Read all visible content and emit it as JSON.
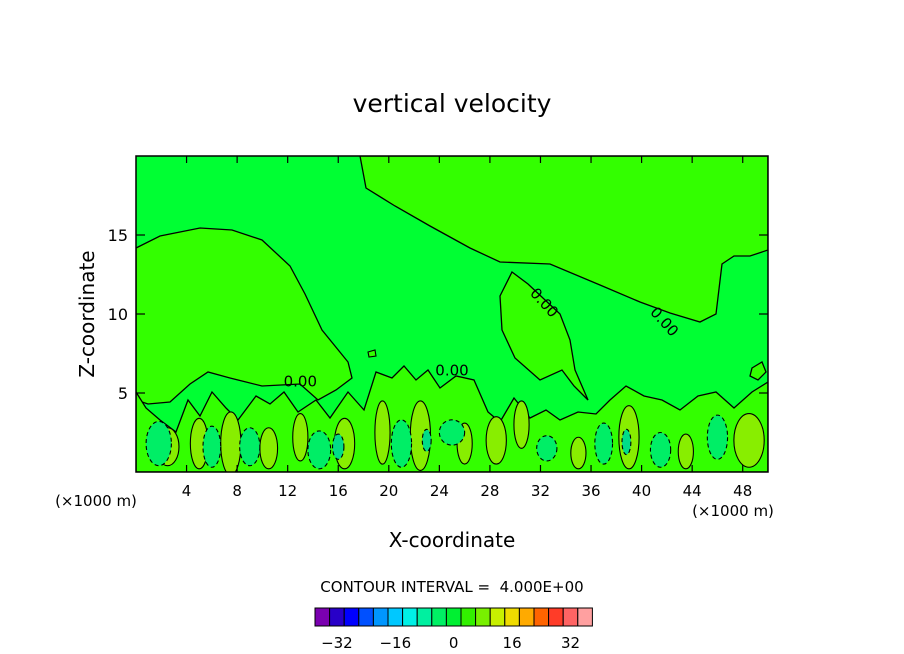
{
  "chart_data": {
    "type": "contour",
    "title": "vertical velocity",
    "xlabel": "X-coordinate",
    "ylabel": "Z-coordinate",
    "x_unit_note": "(×1000 m)",
    "z_unit_note": "(×1000 m)",
    "xlim": [
      0,
      50
    ],
    "ylim": [
      0,
      20
    ],
    "x_ticks": [
      4,
      8,
      12,
      16,
      20,
      24,
      28,
      32,
      36,
      40,
      44,
      48
    ],
    "y_ticks": [
      5,
      10,
      15
    ],
    "contour_interval_text": "CONTOUR INTERVAL =  4.000E+00",
    "contour_labels": [
      {
        "x": 13.0,
        "z": 5.4,
        "text": "0.00"
      },
      {
        "x": 25.0,
        "z": 6.1,
        "text": "0.00"
      },
      {
        "x": 32.0,
        "z": 10.5,
        "text": "0.00"
      },
      {
        "x": 41.5,
        "z": 9.3,
        "text": "0.00"
      }
    ],
    "colorbar": {
      "levels": [
        -36,
        -32,
        -28,
        -24,
        -20,
        -16,
        -12,
        -8,
        -4,
        0,
        4,
        8,
        12,
        16,
        20,
        24,
        28,
        32,
        36
      ],
      "tick_labels": [
        {
          "value": -32,
          "text": "−32"
        },
        {
          "value": -16,
          "text": "−16"
        },
        {
          "value": 0,
          "text": "0"
        },
        {
          "value": 16,
          "text": "16"
        },
        {
          "value": 32,
          "text": "32"
        }
      ],
      "colors": [
        "#7a00b0",
        "#2800c8",
        "#0000ff",
        "#0050ff",
        "#0096ff",
        "#00c8ff",
        "#00f0e6",
        "#00f0a0",
        "#00f064",
        "#00f032",
        "#32f000",
        "#78f000",
        "#c8f000",
        "#f0dc00",
        "#ffaa00",
        "#ff6400",
        "#ff3c28",
        "#ff6464",
        "#ffa0a0"
      ]
    },
    "fill_colors": {
      "background": "#00ff33",
      "positive": "#33ff00",
      "weak_negative": "#00ee66",
      "strong_negative": "#00dd88",
      "strong_positive": "#88ee00"
    }
  }
}
